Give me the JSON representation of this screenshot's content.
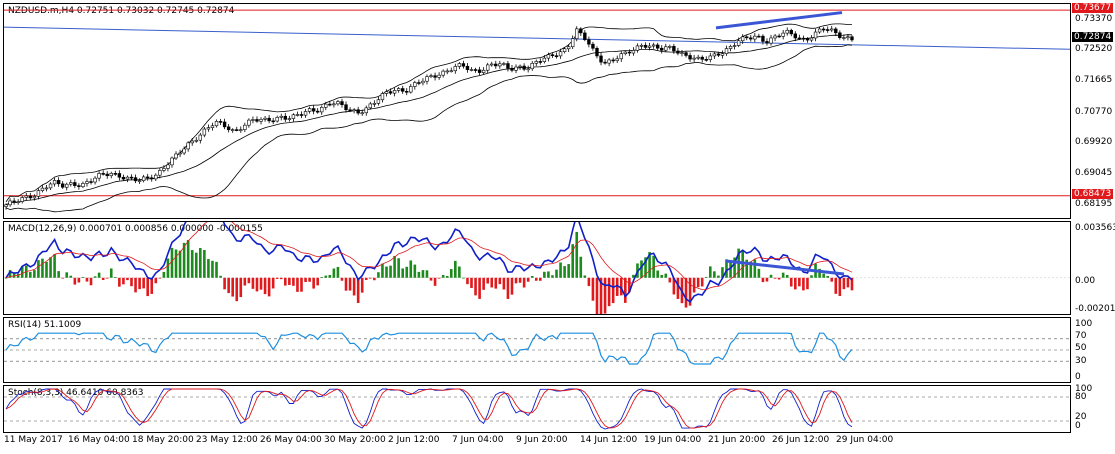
{
  "chart_data": [
    {
      "type": "candlestick",
      "title": "NZDUSD.m,H4  0.72751 0.73032 0.72745 0.72874",
      "ylim": [
        0.6785,
        0.7385
      ],
      "y_ticks": [
        "0.73370",
        "0.72520",
        "0.71665",
        "0.70770",
        "0.69920",
        "0.69045",
        "0.68195"
      ],
      "y_tick_values": [
        0.7337,
        0.7252,
        0.71665,
        0.7077,
        0.6992,
        0.69045,
        0.68195
      ],
      "tags": [
        {
          "label": "0.73677",
          "value": 0.73677,
          "color": "#e0191c"
        },
        {
          "label": "0.72874",
          "value": 0.72874,
          "color": "#000000"
        },
        {
          "label": "0.68473",
          "value": 0.68473,
          "color": "#e0191c"
        }
      ],
      "close_path": [
        0.6822,
        0.6829,
        0.6841,
        0.6853,
        0.6872,
        0.6882,
        0.6874,
        0.6884,
        0.6879,
        0.6889,
        0.6904,
        0.6912,
        0.6905,
        0.6893,
        0.6888,
        0.6898,
        0.6912,
        0.6938,
        0.6959,
        0.6987,
        0.7012,
        0.7034,
        0.7051,
        0.7042,
        0.7029,
        0.7047,
        0.7059,
        0.7056,
        0.7063,
        0.7071,
        0.7064,
        0.7074,
        0.7088,
        0.7092,
        0.7108,
        0.7102,
        0.7089,
        0.7084,
        0.7094,
        0.7112,
        0.7135,
        0.7148,
        0.7143,
        0.7157,
        0.7171,
        0.7186,
        0.7195,
        0.7204,
        0.7211,
        0.7198,
        0.7202,
        0.7215,
        0.7213,
        0.7203,
        0.7211,
        0.7208,
        0.7222,
        0.7235,
        0.7249,
        0.7261,
        0.7309,
        0.7284,
        0.7247,
        0.7221,
        0.7229,
        0.7241,
        0.7258,
        0.7275,
        0.7265,
        0.7256,
        0.7262,
        0.7249,
        0.7237,
        0.7225,
        0.7234,
        0.7249,
        0.7261,
        0.7279,
        0.7288,
        0.7296,
        0.7282,
        0.7292,
        0.7304,
        0.7297,
        0.7285,
        0.7299,
        0.7314,
        0.7308,
        0.7296,
        0.7287
      ],
      "macd": {
        "label": "MACD(12,26,9) 0.000701 0.000856 0.000000 -0.000155",
        "ylim": [
          -0.0026,
          0.004
        ],
        "ticks": [
          "0.003563",
          "0.00",
          "-0.002014"
        ],
        "tick_values": [
          0.003563,
          0.0,
          -0.002014
        ]
      },
      "rsi": {
        "label": "RSI(14) 51.1009",
        "ticks": [
          "100",
          "70",
          "50",
          "30",
          "0"
        ],
        "current": 51.1009
      },
      "stoch": {
        "label": "Stoch(8,3,3) 46.6410 60.8363",
        "ticks": [
          "100",
          "80",
          "20",
          "0"
        ]
      },
      "x_ticks": [
        "11 May 2017",
        "16 May 04:00",
        "18 May 20:00",
        "23 May 12:00",
        "26 May 04:00",
        "30 May 20:00",
        "2 Jun 12:00",
        "7 Jun 04:00",
        "9 Jun 20:00",
        "14 Jun 12:00",
        "19 Jun 04:00",
        "21 Jun 20:00",
        "26 Jun 12:00",
        "29 Jun 04:00"
      ]
    }
  ],
  "colors": {
    "bull": "#000000",
    "bear": "#000000",
    "bb": "#000000",
    "trend": "#3a56d4",
    "level": "#e0191c",
    "macd_line": "#1020c8",
    "signal": "#e0191c",
    "hist_pos": "#1c8a1c",
    "hist_neg": "#e0191c",
    "rsi": "#1e8fe0",
    "stoch_main": "#1020c8",
    "stoch_signal": "#e0191c"
  }
}
